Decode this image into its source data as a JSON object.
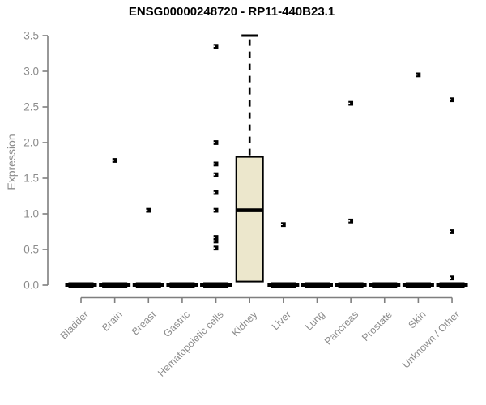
{
  "chart_data": {
    "type": "boxplot",
    "title": "ENSG00000248720 - RP11-440B23.1",
    "ylabel": "Expression",
    "xlabel": "",
    "ylim": [
      0,
      3.5
    ],
    "ytick_labels": [
      "0.0",
      "0.5",
      "1.0",
      "1.5",
      "2.0",
      "2.5",
      "3.0",
      "3.5"
    ],
    "grid": false,
    "legend": "none",
    "categories": [
      "Bladder",
      "Brain",
      "Breast",
      "Gastric",
      "Hematopoietic cells",
      "Kidney",
      "Liver",
      "Lung",
      "Pancreas",
      "Prostate",
      "Skin",
      "Unknown / Other"
    ],
    "series": [
      {
        "category": "Bladder",
        "box": {
          "low": 0,
          "q1": 0,
          "median": 0,
          "q3": 0,
          "high": 0
        },
        "outliers": []
      },
      {
        "category": "Brain",
        "box": {
          "low": 0,
          "q1": 0,
          "median": 0,
          "q3": 0,
          "high": 0
        },
        "outliers": [
          1.75
        ]
      },
      {
        "category": "Breast",
        "box": {
          "low": 0,
          "q1": 0,
          "median": 0,
          "q3": 0,
          "high": 0
        },
        "outliers": [
          1.05
        ]
      },
      {
        "category": "Gastric",
        "box": {
          "low": 0,
          "q1": 0,
          "median": 0,
          "q3": 0,
          "high": 0
        },
        "outliers": []
      },
      {
        "category": "Hematopoietic cells",
        "box": {
          "low": 0,
          "q1": 0,
          "median": 0,
          "q3": 0,
          "high": 0
        },
        "outliers": [
          3.35,
          2.0,
          1.7,
          1.55,
          1.3,
          1.05,
          0.67,
          0.62,
          0.52
        ]
      },
      {
        "category": "Kidney",
        "box": {
          "low": 0.05,
          "q1": 0.05,
          "median": 1.05,
          "q3": 1.8,
          "high": 3.5
        },
        "outliers": []
      },
      {
        "category": "Liver",
        "box": {
          "low": 0,
          "q1": 0,
          "median": 0,
          "q3": 0,
          "high": 0
        },
        "outliers": [
          0.85
        ]
      },
      {
        "category": "Lung",
        "box": {
          "low": 0,
          "q1": 0,
          "median": 0,
          "q3": 0,
          "high": 0
        },
        "outliers": []
      },
      {
        "category": "Pancreas",
        "box": {
          "low": 0,
          "q1": 0,
          "median": 0,
          "q3": 0,
          "high": 0
        },
        "outliers": [
          2.55,
          0.9
        ]
      },
      {
        "category": "Prostate",
        "box": {
          "low": 0,
          "q1": 0,
          "median": 0,
          "q3": 0,
          "high": 0
        },
        "outliers": []
      },
      {
        "category": "Skin",
        "box": {
          "low": 0,
          "q1": 0,
          "median": 0,
          "q3": 0,
          "high": 0
        },
        "outliers": [
          2.95
        ]
      },
      {
        "category": "Unknown / Other",
        "box": {
          "low": 0,
          "q1": 0,
          "median": 0,
          "q3": 0,
          "high": 0
        },
        "outliers": [
          2.6,
          0.75,
          0.1
        ]
      }
    ],
    "colors": {
      "box_fill": "#ECE7CC",
      "box_stroke": "#000000",
      "median": "#000000",
      "outlier": "#000000",
      "axis_line": "#7f7f7f",
      "tick_label": "#8c8c8c",
      "title": "#000000",
      "background": "#ffffff"
    }
  }
}
